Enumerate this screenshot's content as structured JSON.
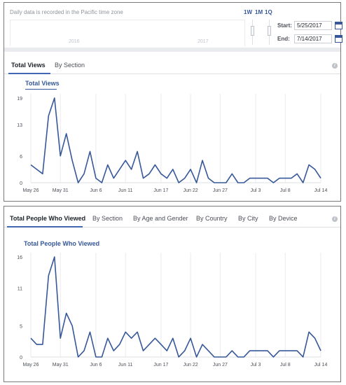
{
  "time_range": {
    "note": "Daily data is recorded in the Pacific time zone",
    "years": [
      "2016",
      "2017"
    ],
    "range_buttons": [
      "1W",
      "1M",
      "1Q"
    ],
    "start_label": "Start:",
    "start_value": "5/25/2017",
    "end_label": "End:",
    "end_value": "7/14/2017"
  },
  "panel1": {
    "tabs": [
      "Total Views",
      "By Section"
    ],
    "active_tab": 0,
    "info": "i"
  },
  "panel2": {
    "tabs": [
      "Total People Who Viewed",
      "By Section",
      "By Age and Gender",
      "By Country",
      "By City",
      "By Device"
    ],
    "active_tab": 0,
    "info": "i"
  },
  "chart_data": [
    {
      "type": "line",
      "title": "Total Views",
      "xlabel": "",
      "ylabel": "",
      "x_tick_labels": [
        "May 26",
        "May 31",
        "Jun 6",
        "Jun 11",
        "Jun 17",
        "Jun 22",
        "Jun 27",
        "Jul 3",
        "Jul 8",
        "Jul 14"
      ],
      "y_ticks": [
        0,
        6,
        13,
        19
      ],
      "ylim": [
        0,
        19
      ],
      "grid": "vertical",
      "color": "#365899",
      "x": [
        "May 26",
        "May 27",
        "May 28",
        "May 29",
        "May 30",
        "May 31",
        "Jun 1",
        "Jun 2",
        "Jun 3",
        "Jun 4",
        "Jun 5",
        "Jun 6",
        "Jun 7",
        "Jun 8",
        "Jun 9",
        "Jun 10",
        "Jun 11",
        "Jun 12",
        "Jun 13",
        "Jun 14",
        "Jun 15",
        "Jun 16",
        "Jun 17",
        "Jun 18",
        "Jun 19",
        "Jun 20",
        "Jun 21",
        "Jun 22",
        "Jun 23",
        "Jun 24",
        "Jun 25",
        "Jun 26",
        "Jun 27",
        "Jun 28",
        "Jun 29",
        "Jun 30",
        "Jul 1",
        "Jul 2",
        "Jul 3",
        "Jul 4",
        "Jul 5",
        "Jul 6",
        "Jul 7",
        "Jul 8",
        "Jul 9",
        "Jul 10",
        "Jul 11",
        "Jul 12",
        "Jul 13",
        "Jul 14"
      ],
      "values": [
        4,
        3,
        2,
        15,
        19,
        6,
        11,
        5,
        0,
        2,
        7,
        1,
        0,
        4,
        1,
        3,
        5,
        3,
        7,
        1,
        2,
        4,
        2,
        1,
        3,
        0,
        1,
        3,
        0,
        5,
        1,
        0,
        0,
        0,
        2,
        0,
        0,
        1,
        1,
        1,
        1,
        0,
        1,
        1,
        1,
        2,
        0,
        4,
        3,
        1
      ]
    },
    {
      "type": "line",
      "title": "Total People Who Viewed",
      "xlabel": "",
      "ylabel": "",
      "x_tick_labels": [
        "May 26",
        "May 31",
        "Jun 6",
        "Jun 11",
        "Jun 17",
        "Jun 22",
        "Jun 27",
        "Jul 3",
        "Jul 8",
        "Jul 14"
      ],
      "y_ticks": [
        0,
        5,
        11,
        16
      ],
      "ylim": [
        0,
        16
      ],
      "grid": "vertical",
      "color": "#365899",
      "x": [
        "May 26",
        "May 27",
        "May 28",
        "May 29",
        "May 30",
        "May 31",
        "Jun 1",
        "Jun 2",
        "Jun 3",
        "Jun 4",
        "Jun 5",
        "Jun 6",
        "Jun 7",
        "Jun 8",
        "Jun 9",
        "Jun 10",
        "Jun 11",
        "Jun 12",
        "Jun 13",
        "Jun 14",
        "Jun 15",
        "Jun 16",
        "Jun 17",
        "Jun 18",
        "Jun 19",
        "Jun 20",
        "Jun 21",
        "Jun 22",
        "Jun 23",
        "Jun 24",
        "Jun 25",
        "Jun 26",
        "Jun 27",
        "Jun 28",
        "Jun 29",
        "Jun 30",
        "Jul 1",
        "Jul 2",
        "Jul 3",
        "Jul 4",
        "Jul 5",
        "Jul 6",
        "Jul 7",
        "Jul 8",
        "Jul 9",
        "Jul 10",
        "Jul 11",
        "Jul 12",
        "Jul 13",
        "Jul 14"
      ],
      "values": [
        3,
        2,
        2,
        13,
        16,
        3,
        7,
        5,
        0,
        1,
        4,
        0,
        0,
        3,
        1,
        2,
        4,
        3,
        4,
        1,
        2,
        3,
        2,
        1,
        3,
        0,
        1,
        3,
        0,
        2,
        1,
        0,
        0,
        0,
        1,
        0,
        0,
        1,
        1,
        1,
        1,
        0,
        1,
        1,
        1,
        1,
        0,
        4,
        3,
        1
      ]
    }
  ]
}
